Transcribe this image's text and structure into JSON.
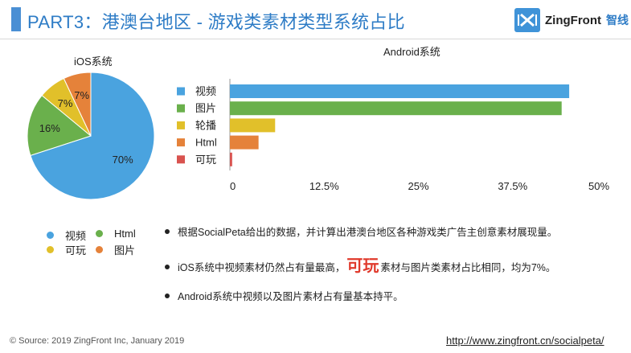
{
  "header": {
    "title": "PART3：港澳台地区 - 游戏类素材类型系统占比",
    "logo_text": "ZingFront",
    "logo_cn": "智线"
  },
  "colors": {
    "blue": "#4aa3df",
    "green": "#6ab04c",
    "yellow": "#e1c02a",
    "orange": "#e5823a",
    "red": "#d9534f",
    "accent": "#2e7cc6"
  },
  "chart_data": [
    {
      "type": "pie",
      "title": "iOS系统",
      "labels": [
        "视频",
        "Html",
        "可玩",
        "图片"
      ],
      "values": [
        70,
        16,
        7,
        7
      ],
      "data_labels": [
        "70%",
        "16%",
        "7%",
        "7%"
      ],
      "legend": "bottom"
    },
    {
      "type": "bar",
      "orientation": "horizontal",
      "title": "Android系统",
      "categories": [
        "视频",
        "图片",
        "轮播",
        "Html",
        "可玩"
      ],
      "values": [
        45,
        44,
        6,
        3.8,
        0.3
      ],
      "xlim": [
        0,
        50
      ],
      "x_ticks": [
        "0",
        "12.5%",
        "25%",
        "37.5%",
        "50%"
      ],
      "legend": "left"
    }
  ],
  "bullets": {
    "b1": "根据SocialPeta给出的数据，并计算出港澳台地区各种游戏类广告主创意素材展现量。",
    "b2_pre": "iOS系统中视频素材仍然占有量最高，",
    "b2_hl": "可玩",
    "b2_post": "素材与图片类素材占比相同，均为7%。",
    "b3": "Android系统中视频以及图片素材占有量基本持平。"
  },
  "footer": {
    "source": "© Source: 2019 ZingFront Inc, January 2019",
    "url": "http://www.zingfront.cn/socialpeta/"
  }
}
